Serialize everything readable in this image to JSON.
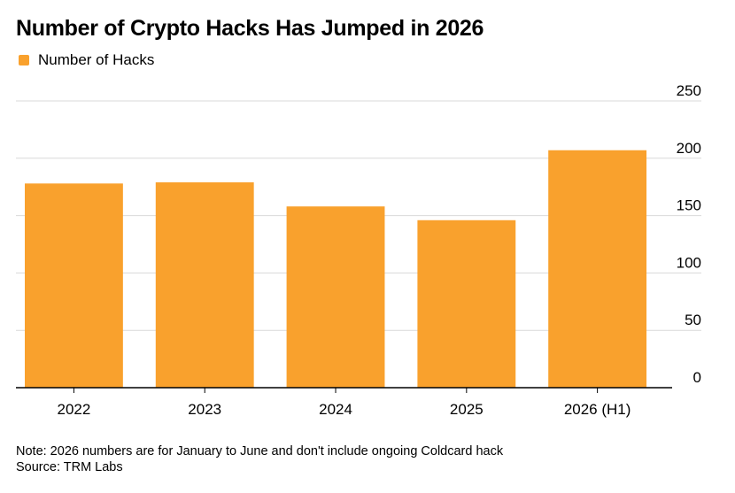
{
  "chart_data": {
    "type": "bar",
    "title": "Number of Crypto Hacks Has Jumped in 2026",
    "legend": [
      {
        "name": "Number of Hacks",
        "color": "#f9a12d"
      }
    ],
    "categories": [
      "2022",
      "2023",
      "2024",
      "2025",
      "2026 (H1)"
    ],
    "series": [
      {
        "name": "Number of Hacks",
        "values": [
          178,
          179,
          158,
          146,
          207
        ]
      }
    ],
    "ylim": [
      0,
      250
    ],
    "yticks": [
      0,
      50,
      100,
      150,
      200,
      250
    ],
    "y_axis_side": "right",
    "grid": true,
    "legend_position": "top-left",
    "xlabel": "",
    "ylabel": ""
  },
  "notes": {
    "note": "Note: 2026 numbers are for January to June and don't include ongoing Coldcard hack",
    "source": "Source: TRM Labs"
  },
  "colors": {
    "bar": "#f9a12d",
    "grid": "#d9d9d9",
    "axis": "#000000"
  }
}
